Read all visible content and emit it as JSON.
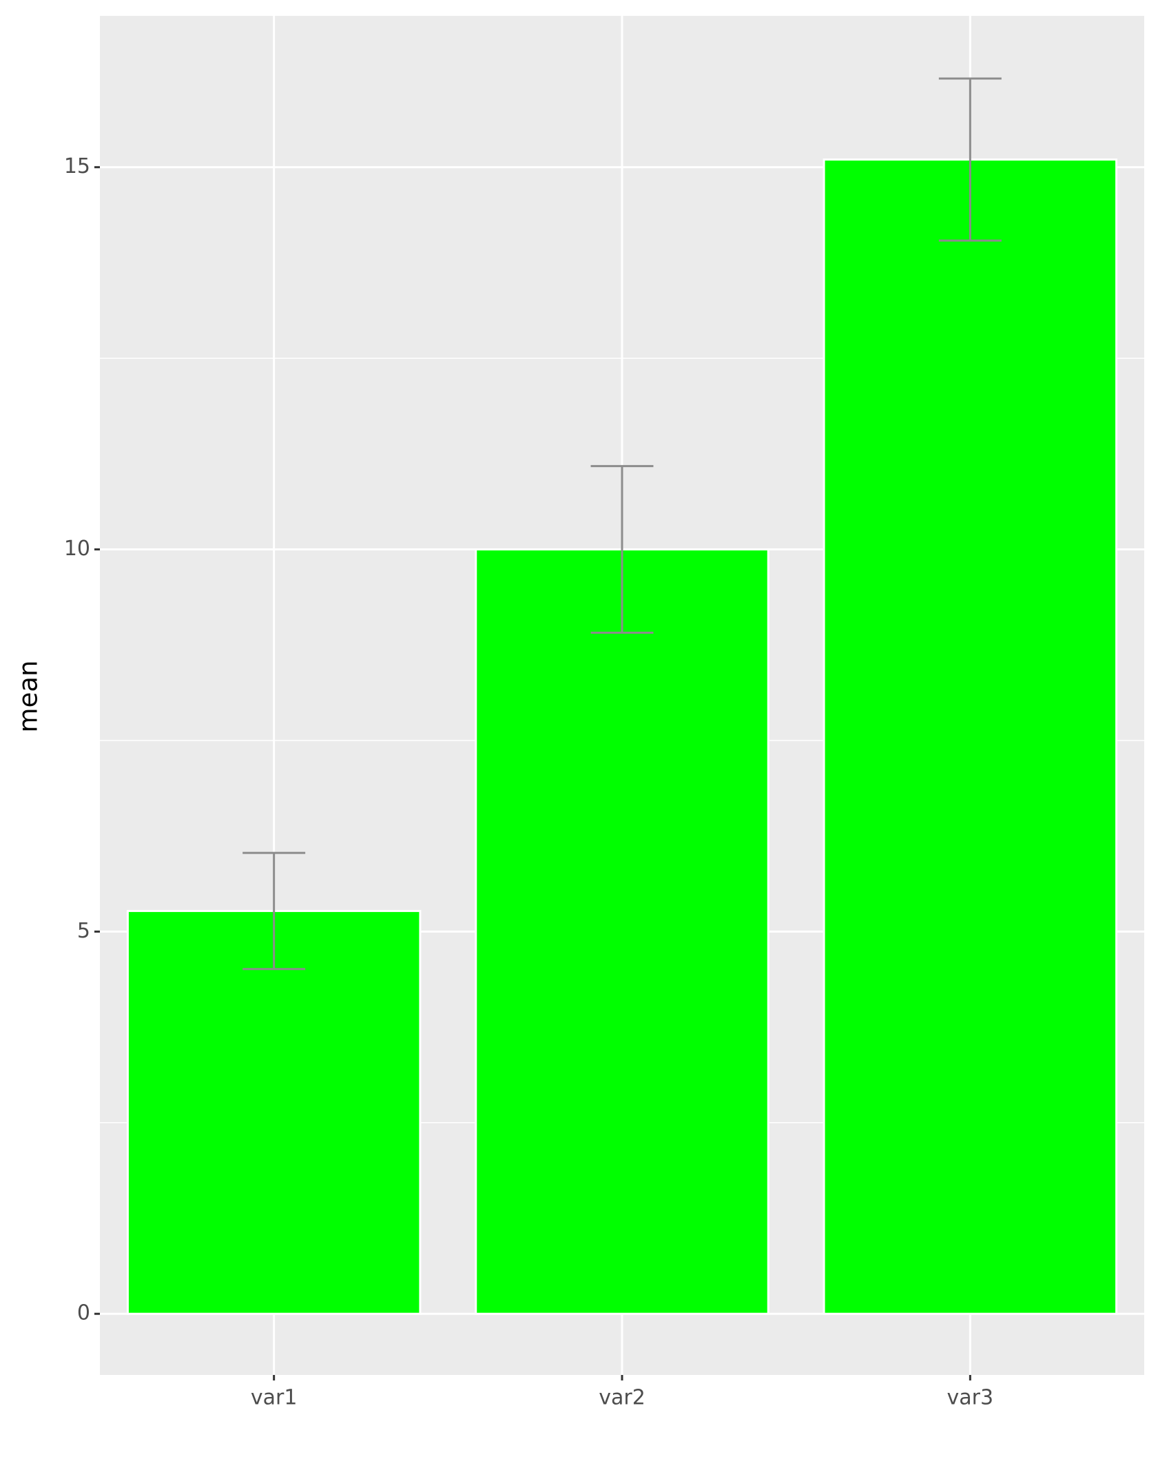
{
  "chart_data": {
    "type": "bar",
    "y_label": "mean",
    "categories": [
      "var1",
      "var2",
      "var3"
    ],
    "values": [
      5.27,
      10.0,
      15.1
    ],
    "errors": [
      0.76,
      1.09,
      1.06
    ],
    "color": "#00ff00",
    "error_color": "#8c8c8c",
    "ylim": [
      -0.8,
      16.98
    ],
    "yticks": [
      0,
      5,
      10,
      15
    ],
    "yminor": [
      2.5,
      7.5,
      12.5
    ],
    "grid": true
  }
}
